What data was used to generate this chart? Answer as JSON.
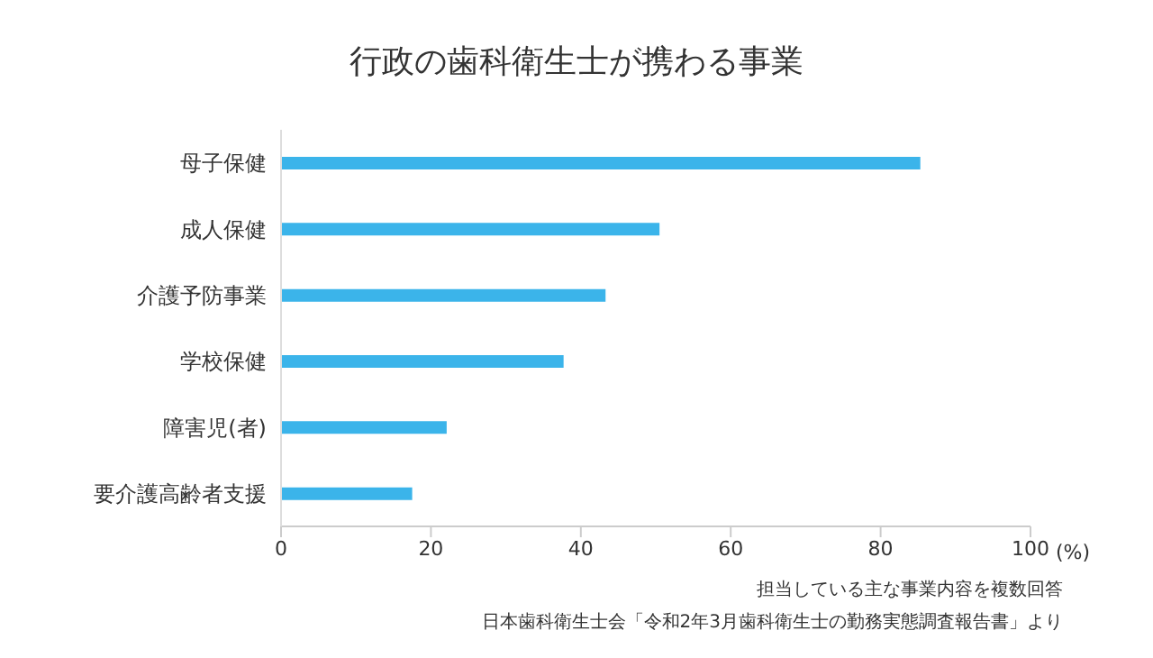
{
  "chart_data": {
    "type": "bar",
    "orientation": "horizontal",
    "title": "行政の歯科衛生士が携わる事業",
    "xlabel": "(%)",
    "categories": [
      "母子保健",
      "成人保健",
      "介護予防事業",
      "学校保健",
      "障害児(者)",
      "要介護高齢者支援"
    ],
    "values": [
      85.3,
      50.5,
      43.3,
      37.7,
      22.1,
      17.5
    ],
    "color": "#3bb4ea",
    "xlim": [
      0,
      100
    ],
    "xticks": [
      0,
      20,
      40,
      60,
      80,
      100
    ],
    "grid": false,
    "legend": false,
    "annotations": [
      "担当している主な事業内容を複数回答",
      "日本歯科衛生士会「令和2年3月歯科衛生士の勤務実態調査報告書」より"
    ]
  }
}
